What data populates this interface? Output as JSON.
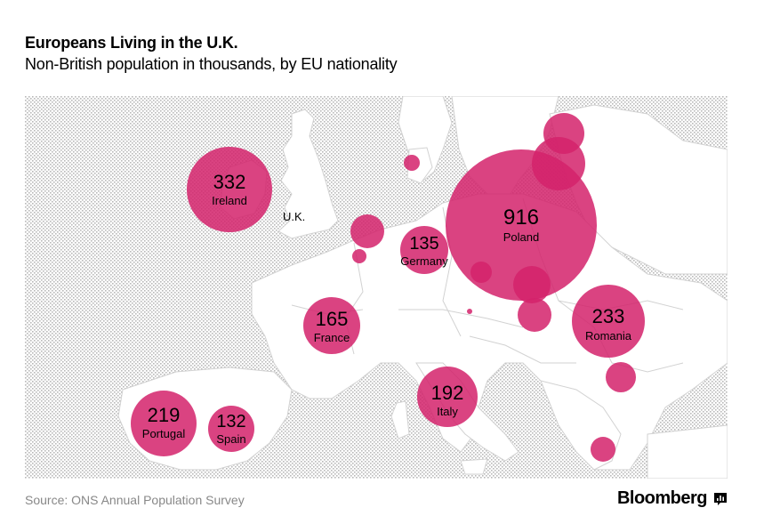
{
  "header": {
    "title": "Europeans Living in the U.K.",
    "subtitle": "Non-British population in thousands, by EU nationality"
  },
  "map": {
    "uk_label": "U.K.",
    "bubble_color": "#d4226b",
    "land_color": "#ffffff",
    "sea_color": "#e3e3e3",
    "labeled_bubbles": [
      {
        "country": "Poland",
        "value": "916"
      },
      {
        "country": "Ireland",
        "value": "332"
      },
      {
        "country": "Romania",
        "value": "233"
      },
      {
        "country": "Portugal",
        "value": "219"
      },
      {
        "country": "Italy",
        "value": "192"
      },
      {
        "country": "France",
        "value": "165"
      },
      {
        "country": "Germany",
        "value": "135"
      },
      {
        "country": "Spain",
        "value": "132"
      }
    ]
  },
  "footer": {
    "source": "Source:  ONS Annual Population Survey",
    "brand": "Bloomberg",
    "brand_icon": "bloomberg-chart-icon"
  }
}
